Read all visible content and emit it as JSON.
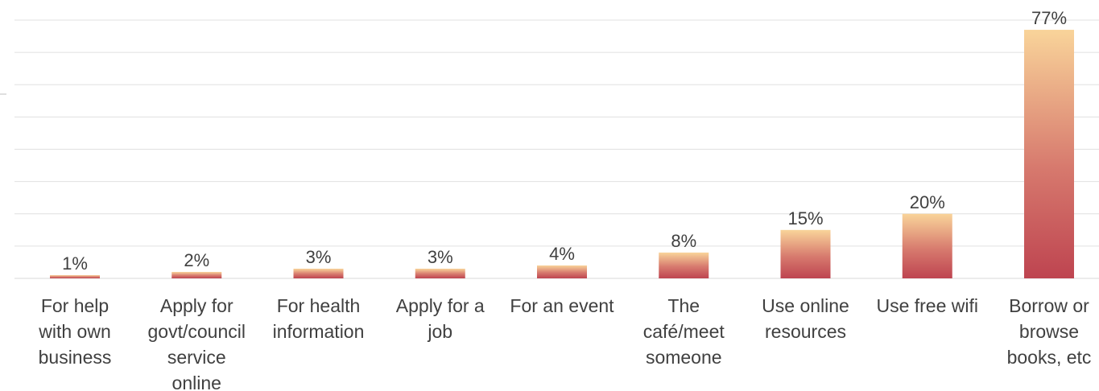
{
  "chart_data": {
    "type": "bar",
    "title": "",
    "xlabel": "",
    "ylabel": "",
    "categories": [
      [
        "For help",
        "with own",
        "business"
      ],
      [
        "Apply for",
        "govt/council",
        "service",
        "online"
      ],
      [
        "For health",
        "information"
      ],
      [
        "Apply for a",
        "job"
      ],
      [
        "For an event"
      ],
      [
        "The",
        "café/meet",
        "someone"
      ],
      [
        "Use online",
        "resources"
      ],
      [
        "Use free wifi"
      ],
      [
        "Borrow or",
        "browse",
        "books, etc"
      ]
    ],
    "values": [
      1,
      2,
      3,
      3,
      4,
      8,
      15,
      20,
      77
    ],
    "data_labels": [
      "1%",
      "2%",
      "3%",
      "3%",
      "4%",
      "8%",
      "15%",
      "20%",
      "77%"
    ],
    "ylim": [
      0,
      80
    ],
    "grid": true,
    "legend": "none",
    "colors": {
      "bar_top": "#f9d49a",
      "bar_bottom": "#be4450",
      "gridline": "#e0e0e0",
      "text": "#404040"
    }
  }
}
